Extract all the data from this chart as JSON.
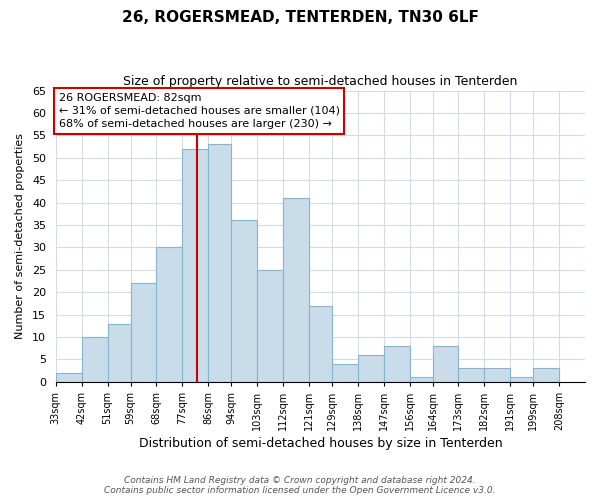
{
  "title": "26, ROGERSMEAD, TENTERDEN, TN30 6LF",
  "subtitle": "Size of property relative to semi-detached houses in Tenterden",
  "xlabel": "Distribution of semi-detached houses by size in Tenterden",
  "ylabel": "Number of semi-detached properties",
  "bin_labels": [
    "33sqm",
    "42sqm",
    "51sqm",
    "59sqm",
    "68sqm",
    "77sqm",
    "86sqm",
    "94sqm",
    "103sqm",
    "112sqm",
    "121sqm",
    "129sqm",
    "138sqm",
    "147sqm",
    "156sqm",
    "164sqm",
    "173sqm",
    "182sqm",
    "191sqm",
    "199sqm",
    "208sqm"
  ],
  "bin_edges": [
    33,
    42,
    51,
    59,
    68,
    77,
    86,
    94,
    103,
    112,
    121,
    129,
    138,
    147,
    156,
    164,
    173,
    182,
    191,
    199,
    208
  ],
  "counts": [
    2,
    10,
    13,
    22,
    30,
    52,
    53,
    36,
    25,
    41,
    17,
    4,
    6,
    8,
    1,
    8,
    3,
    3,
    1,
    3
  ],
  "bar_color": "#c9dcea",
  "bar_edge_color": "#8ab4cc",
  "property_value": 82,
  "vline_color": "#cc0000",
  "annotation_text": "26 ROGERSMEAD: 82sqm\n← 31% of semi-detached houses are smaller (104)\n68% of semi-detached houses are larger (230) →",
  "annotation_box_color": "#ffffff",
  "annotation_box_edge": "#cc0000",
  "ylim": [
    0,
    65
  ],
  "yticks": [
    0,
    5,
    10,
    15,
    20,
    25,
    30,
    35,
    40,
    45,
    50,
    55,
    60,
    65
  ],
  "footer": "Contains HM Land Registry data © Crown copyright and database right 2024.\nContains public sector information licensed under the Open Government Licence v3.0.",
  "background_color": "#ffffff",
  "grid_color": "#d0dde8"
}
